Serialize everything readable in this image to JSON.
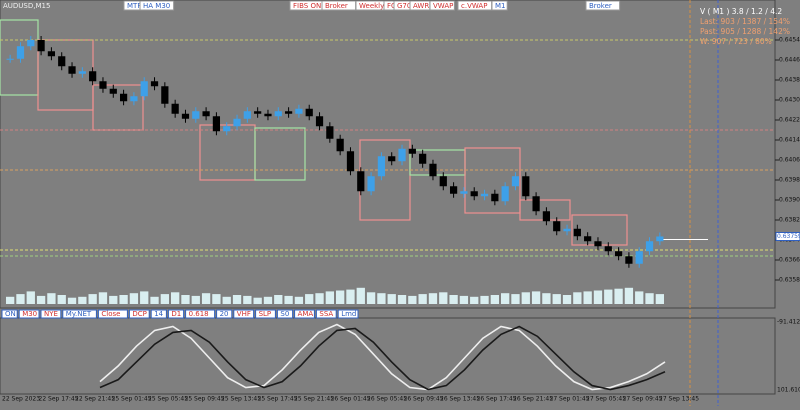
{
  "chart_data": {
    "type": "candlestick",
    "title": "AUDUSD,M15",
    "ylim": [
      0.64705,
      0.63505
    ],
    "yticks": [
      0.64545,
      0.64465,
      0.64385,
      0.64305,
      0.64225,
      0.64145,
      0.64065,
      0.63985,
      0.63905,
      0.63825,
      0.63745,
      0.63665,
      0.63585
    ],
    "last_price": 0.63759,
    "series": [
      {
        "name": "AUDUSD",
        "color": "#3ea0e8",
        "values": [
          0.6447,
          0.6452,
          0.64545,
          0.645,
          0.6448,
          0.6444,
          0.6441,
          0.6442,
          0.6438,
          0.6435,
          0.6433,
          0.643,
          0.6432,
          0.6438,
          0.6436,
          0.6429,
          0.6425,
          0.6423,
          0.6426,
          0.6424,
          0.6418,
          0.642,
          0.6423,
          0.6426,
          0.6425,
          0.6424,
          0.6426,
          0.6425,
          0.6427,
          0.6424,
          0.642,
          0.6415,
          0.641,
          0.6402,
          0.6394,
          0.64,
          0.6408,
          0.6406,
          0.6411,
          0.6409,
          0.6405,
          0.64,
          0.6396,
          0.6393,
          0.6394,
          0.6392,
          0.6393,
          0.639,
          0.6396,
          0.64,
          0.6392,
          0.6386,
          0.6382,
          0.6378,
          0.6379,
          0.6376,
          0.6374,
          0.6372,
          0.637,
          0.6368,
          0.6365,
          0.637,
          0.6374,
          0.63759
        ]
      }
    ],
    "volumes": [
      40,
      55,
      70,
      45,
      60,
      50,
      35,
      40,
      55,
      65,
      45,
      50,
      60,
      70,
      40,
      55,
      65,
      50,
      45,
      60,
      55,
      40,
      50,
      45,
      35,
      40,
      50,
      45,
      40,
      55,
      60,
      70,
      75,
      80,
      90,
      65,
      60,
      55,
      50,
      45,
      55,
      60,
      65,
      50,
      45,
      40,
      45,
      50,
      60,
      55,
      65,
      70,
      60,
      55,
      50,
      65,
      70,
      75,
      80,
      85,
      90,
      70,
      60,
      55
    ],
    "time_labels": [
      "22 Sep 2023",
      "22 Sep 17:45",
      "22 Sep 21:45",
      "25 Sep 01:45",
      "25 Sep 05:45",
      "25 Sep 09:45",
      "25 Sep 13:45",
      "25 Sep 17:45",
      "25 Sep 21:45",
      "26 Sep 01:45",
      "26 Sep 05:45",
      "26 Sep 09:45",
      "26 Sep 13:45",
      "26 Sep 17:45",
      "26 Sep 21:45",
      "27 Sep 01:45",
      "27 Sep 05:45",
      "27 Sep 09:45",
      "27 Sep 13:45"
    ]
  },
  "oscillator": {
    "ylim": [
      -91.4126,
      101.6106
    ],
    "series": [
      {
        "color": "#eeeeee",
        "values": [
          -60,
          -20,
          30,
          70,
          80,
          50,
          0,
          -50,
          -75,
          -70,
          -30,
          20,
          65,
          85,
          60,
          10,
          -40,
          -75,
          -80,
          -50,
          0,
          50,
          80,
          70,
          30,
          -20,
          -60,
          -80,
          -75,
          -60,
          -40,
          -10
        ]
      },
      {
        "color": "#1a1a1a",
        "values": [
          -75,
          -55,
          -10,
          35,
          65,
          70,
          40,
          -10,
          -55,
          -75,
          -60,
          -20,
          30,
          70,
          75,
          40,
          -10,
          -55,
          -80,
          -70,
          -30,
          20,
          60,
          80,
          55,
          10,
          -35,
          -70,
          -80,
          -70,
          -55,
          -35
        ]
      }
    ]
  },
  "toolbar": [
    "MTF",
    "HA M30",
    "FIBS ON",
    "Broker",
    "Weekly",
    "FC",
    "G70",
    "AWR",
    "VWAP",
    "c.VWAP",
    "M1",
    "Broker"
  ],
  "info": [
    "V ( M1 ) 3.8 / 1.2 / 4.2",
    "Last: 903 / 1387 / 154%",
    "Past: 905 / 1288 / 142%",
    "W: 907 / 723 / 80%"
  ],
  "indicator_buttons": [
    "ON",
    "M30",
    "NYE",
    "My.NET",
    "Close",
    "DCP",
    "14",
    "D1",
    "0.618",
    "20",
    "VHF",
    "SLP",
    "S0",
    "AMA",
    "SSA",
    "Lmd"
  ]
}
